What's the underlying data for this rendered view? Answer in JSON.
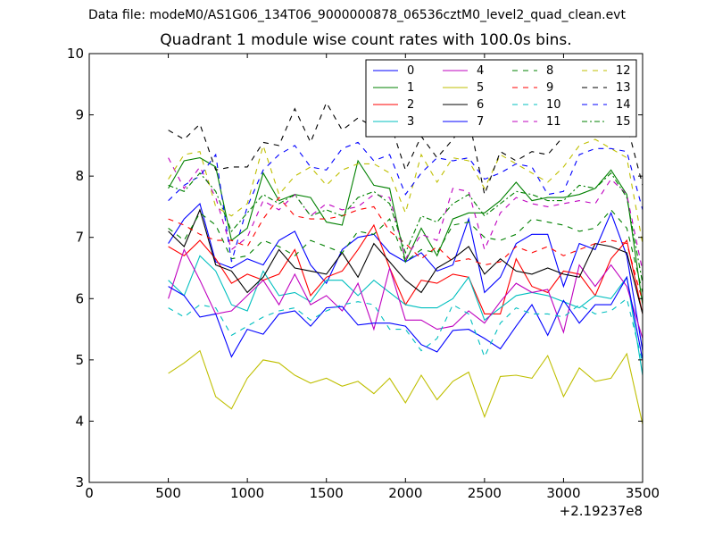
{
  "figure": {
    "suptitle": "Data file: modeM0/AS1G06_134T06_9000000878_06536cztM0_level2_quad_clean.evt"
  },
  "chart_data": {
    "type": "line",
    "title": "Quadrant 1 module wise count rates with 100.0s bins.",
    "xlabel": "",
    "ylabel": "",
    "xlim": [
      0,
      3500
    ],
    "ylim": [
      3,
      10
    ],
    "x_offset_text": "+2.19237e8",
    "xticks": [
      0,
      500,
      1000,
      1500,
      2000,
      2500,
      3000,
      3500
    ],
    "xtick_labels": [
      "0",
      "500",
      "1000",
      "1500",
      "2000",
      "2500",
      "3000",
      "3500"
    ],
    "yticks": [
      3,
      4,
      5,
      6,
      7,
      8,
      9,
      10
    ],
    "ytick_labels": [
      "3",
      "4",
      "5",
      "6",
      "7",
      "8",
      "9",
      "10"
    ],
    "grid": false,
    "legend": {
      "placement": "top-right",
      "columns": 4
    },
    "x": [
      500,
      600,
      700,
      800,
      900,
      1000,
      1100,
      1200,
      1300,
      1400,
      1500,
      1600,
      1700,
      1800,
      1900,
      2000,
      2100,
      2200,
      2300,
      2400,
      2500,
      2600,
      2700,
      2800,
      2900,
      3000,
      3100,
      3200,
      3300,
      3400,
      3500
    ],
    "series": [
      {
        "name": "0",
        "color": "#0000ff",
        "dash": "solid",
        "values": [
          6.9,
          7.3,
          7.55,
          6.6,
          6.5,
          6.65,
          6.55,
          6.95,
          7.1,
          6.55,
          6.25,
          6.8,
          7.0,
          7.05,
          6.75,
          6.6,
          6.75,
          6.45,
          6.55,
          7.3,
          6.1,
          6.35,
          6.9,
          7.05,
          7.05,
          6.2,
          6.9,
          6.8,
          7.4,
          6.7,
          5.15
        ]
      },
      {
        "name": "1",
        "color": "#008000",
        "dash": "solid",
        "values": [
          7.8,
          8.25,
          8.3,
          8.15,
          6.95,
          7.15,
          8.05,
          7.6,
          7.7,
          7.65,
          7.25,
          7.2,
          8.25,
          7.85,
          7.8,
          6.6,
          7.15,
          6.7,
          7.3,
          7.4,
          7.4,
          7.6,
          7.9,
          7.6,
          7.65,
          7.65,
          7.7,
          7.8,
          8.1,
          7.7,
          5.9
        ]
      },
      {
        "name": "2",
        "color": "#ff0000",
        "dash": "solid",
        "values": [
          6.85,
          6.7,
          6.95,
          6.65,
          6.25,
          6.4,
          6.3,
          6.4,
          6.8,
          6.05,
          6.35,
          6.45,
          6.8,
          7.2,
          6.5,
          5.9,
          6.3,
          6.25,
          6.4,
          6.35,
          5.75,
          5.75,
          6.65,
          6.2,
          6.1,
          6.45,
          6.4,
          6.05,
          6.65,
          6.95,
          5.75
        ]
      },
      {
        "name": "3",
        "color": "#00bfbf",
        "dash": "solid",
        "values": [
          6.3,
          6.05,
          6.7,
          6.45,
          5.9,
          5.8,
          6.45,
          6.05,
          6.1,
          5.95,
          6.3,
          6.3,
          6.05,
          6.3,
          6.1,
          5.9,
          5.85,
          5.85,
          6.0,
          6.35,
          5.65,
          5.85,
          6.05,
          6.1,
          6.05,
          5.95,
          5.85,
          6.05,
          6.0,
          6.35,
          4.75
        ]
      },
      {
        "name": "4",
        "color": "#bf00bf",
        "dash": "solid",
        "values": [
          6.0,
          6.8,
          6.3,
          5.75,
          5.8,
          6.05,
          6.3,
          5.9,
          6.4,
          5.9,
          6.05,
          5.8,
          6.25,
          5.5,
          6.5,
          5.65,
          5.65,
          5.5,
          5.55,
          5.8,
          5.6,
          5.95,
          6.25,
          6.1,
          6.15,
          5.45,
          6.55,
          6.2,
          6.55,
          6.2,
          5.35
        ]
      },
      {
        "name": "5",
        "color": "#bfbf00",
        "dash": "solid",
        "values": [
          4.78,
          4.95,
          5.15,
          4.4,
          4.2,
          4.7,
          5.0,
          4.95,
          4.75,
          4.62,
          4.7,
          4.57,
          4.65,
          4.45,
          4.7,
          4.3,
          4.75,
          4.35,
          4.65,
          4.8,
          4.07,
          4.73,
          4.75,
          4.7,
          5.07,
          4.4,
          4.87,
          4.65,
          4.7,
          5.1,
          3.95
        ]
      },
      {
        "name": "6",
        "color": "#000000",
        "dash": "solid",
        "values": [
          7.1,
          6.85,
          7.45,
          6.55,
          6.45,
          6.1,
          6.35,
          6.8,
          6.5,
          6.45,
          6.4,
          6.75,
          6.35,
          6.9,
          6.6,
          6.3,
          6.1,
          6.5,
          6.65,
          6.85,
          6.4,
          6.65,
          6.45,
          6.4,
          6.5,
          6.4,
          6.35,
          6.9,
          6.85,
          6.75,
          5.75
        ]
      },
      {
        "name": "7",
        "color": "#0000ff",
        "dash": "solid",
        "values": [
          6.2,
          6.05,
          5.7,
          5.75,
          5.05,
          5.5,
          5.42,
          5.75,
          5.8,
          5.55,
          5.85,
          5.87,
          5.57,
          5.6,
          5.6,
          5.55,
          5.25,
          5.13,
          5.48,
          5.5,
          5.35,
          5.18,
          5.55,
          5.9,
          5.4,
          5.97,
          5.6,
          5.9,
          5.9,
          6.35,
          5.0
        ]
      },
      {
        "name": "8",
        "color": "#008000",
        "dash": "dashed",
        "values": [
          7.15,
          6.95,
          7.4,
          7.2,
          6.65,
          6.7,
          6.95,
          6.85,
          6.7,
          6.95,
          6.85,
          6.75,
          7.1,
          7.05,
          7.3,
          6.6,
          6.8,
          6.75,
          7.2,
          7.25,
          7.0,
          6.95,
          7.05,
          7.3,
          7.25,
          7.2,
          7.1,
          7.15,
          7.45,
          7.15,
          6.1
        ]
      },
      {
        "name": "9",
        "color": "#ff0000",
        "dash": "dashed",
        "values": [
          7.3,
          7.2,
          7.05,
          6.95,
          6.95,
          6.85,
          7.3,
          7.65,
          7.35,
          7.3,
          7.3,
          7.35,
          7.45,
          7.5,
          7.1,
          6.9,
          6.65,
          6.85,
          6.6,
          6.65,
          6.55,
          6.6,
          6.85,
          6.75,
          6.85,
          6.7,
          6.8,
          6.9,
          6.95,
          6.9,
          5.95
        ]
      },
      {
        "name": "10",
        "color": "#00bfbf",
        "dash": "dashed",
        "values": [
          5.85,
          5.7,
          5.9,
          5.85,
          5.4,
          5.55,
          5.7,
          5.8,
          5.85,
          5.65,
          5.8,
          5.9,
          5.95,
          5.9,
          5.5,
          5.5,
          5.15,
          5.35,
          5.9,
          5.75,
          5.05,
          5.6,
          5.85,
          5.75,
          5.75,
          5.7,
          5.9,
          5.75,
          5.8,
          6.0,
          4.95
        ]
      },
      {
        "name": "11",
        "color": "#bf00bf",
        "dash": "dashed",
        "values": [
          8.3,
          7.8,
          8.15,
          7.65,
          6.8,
          7.0,
          7.6,
          7.45,
          7.7,
          7.35,
          7.55,
          7.45,
          7.5,
          7.7,
          7.65,
          6.65,
          7.05,
          6.95,
          7.8,
          7.75,
          6.8,
          7.4,
          7.65,
          7.55,
          7.5,
          7.55,
          7.6,
          7.55,
          7.95,
          7.7,
          6.45
        ]
      },
      {
        "name": "12",
        "color": "#bfbf00",
        "dash": "dashed",
        "values": [
          7.95,
          8.35,
          8.4,
          7.5,
          7.35,
          7.55,
          8.5,
          7.7,
          8.0,
          8.15,
          7.85,
          8.1,
          8.2,
          8.2,
          8.05,
          7.4,
          8.35,
          7.9,
          8.3,
          8.25,
          7.8,
          8.35,
          8.2,
          8.05,
          7.9,
          8.15,
          8.5,
          8.6,
          8.45,
          8.3,
          6.9
        ]
      },
      {
        "name": "13",
        "color": "#000000",
        "dash": "dashed",
        "values": [
          8.75,
          8.6,
          8.85,
          8.1,
          8.15,
          8.15,
          8.55,
          8.5,
          9.1,
          8.55,
          9.2,
          8.75,
          8.95,
          8.8,
          8.9,
          8.1,
          8.65,
          8.3,
          8.6,
          8.95,
          7.7,
          8.4,
          8.25,
          8.4,
          8.35,
          8.65,
          8.7,
          8.65,
          8.75,
          8.85,
          7.85
        ]
      },
      {
        "name": "14",
        "color": "#0000ff",
        "dash": "dashed",
        "values": [
          7.6,
          7.85,
          8.0,
          8.35,
          6.6,
          7.5,
          8.1,
          8.35,
          8.5,
          8.15,
          8.1,
          8.45,
          8.55,
          8.25,
          8.35,
          7.7,
          8.05,
          8.3,
          8.25,
          8.3,
          7.95,
          8.05,
          8.2,
          8.15,
          7.7,
          7.75,
          8.35,
          8.45,
          8.45,
          8.4,
          7.45
        ]
      },
      {
        "name": "15",
        "color": "#008000",
        "dash": "dashdot",
        "values": [
          7.85,
          7.75,
          8.05,
          7.75,
          7.1,
          7.4,
          7.7,
          7.55,
          7.7,
          7.35,
          7.45,
          7.35,
          7.65,
          7.75,
          7.55,
          6.75,
          7.35,
          7.25,
          7.55,
          7.7,
          7.35,
          7.55,
          7.75,
          7.7,
          7.6,
          7.6,
          7.85,
          7.8,
          8.05,
          7.65,
          6.25
        ]
      }
    ]
  }
}
